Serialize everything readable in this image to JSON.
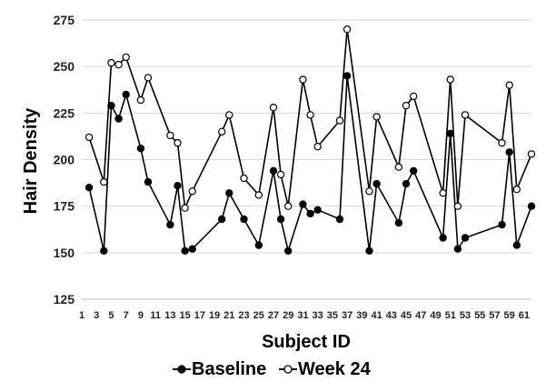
{
  "chart_data": {
    "type": "line",
    "title": "",
    "xlabel": "Subject ID",
    "ylabel": "Hair Density",
    "xlim": [
      1,
      62
    ],
    "ylim": [
      125,
      275
    ],
    "yticks": [
      125,
      150,
      175,
      200,
      225,
      250,
      275
    ],
    "xticks": [
      1,
      3,
      5,
      7,
      9,
      11,
      13,
      15,
      17,
      19,
      21,
      23,
      25,
      27,
      29,
      31,
      33,
      35,
      37,
      39,
      41,
      43,
      45,
      47,
      49,
      51,
      53,
      55,
      57,
      59,
      61
    ],
    "grid": "horizontal",
    "legend_position": "bottom",
    "series": [
      {
        "name": "Baseline",
        "marker": "filled-circle",
        "color": "#000000",
        "x": [
          2,
          4,
          5,
          6,
          7,
          9,
          10,
          13,
          14,
          15,
          16,
          20,
          21,
          23,
          25,
          27,
          28,
          29,
          31,
          32,
          33,
          36,
          37,
          40,
          41,
          44,
          45,
          46,
          50,
          51,
          52,
          53,
          58,
          59,
          60,
          62
        ],
        "y": [
          185,
          151,
          229,
          222,
          235,
          206,
          188,
          165,
          186,
          151,
          152,
          168,
          182,
          168,
          154,
          194,
          168,
          151,
          176,
          171,
          173,
          168,
          245,
          151,
          187,
          166,
          187,
          194,
          158,
          214,
          152,
          158,
          165,
          204,
          154,
          175
        ]
      },
      {
        "name": "Week 24",
        "marker": "open-circle",
        "color": "#000000",
        "x": [
          2,
          4,
          5,
          6,
          7,
          9,
          10,
          13,
          14,
          15,
          16,
          20,
          21,
          23,
          25,
          27,
          28,
          29,
          31,
          32,
          33,
          36,
          37,
          40,
          41,
          44,
          45,
          46,
          50,
          51,
          52,
          53,
          58,
          59,
          60,
          62
        ],
        "y": [
          212,
          188,
          252,
          251,
          255,
          232,
          244,
          213,
          209,
          174,
          183,
          215,
          224,
          190,
          181,
          228,
          192,
          175,
          243,
          224,
          207,
          221,
          270,
          183,
          223,
          196,
          229,
          234,
          182,
          243,
          175,
          224,
          209,
          240,
          184,
          203
        ]
      }
    ]
  }
}
